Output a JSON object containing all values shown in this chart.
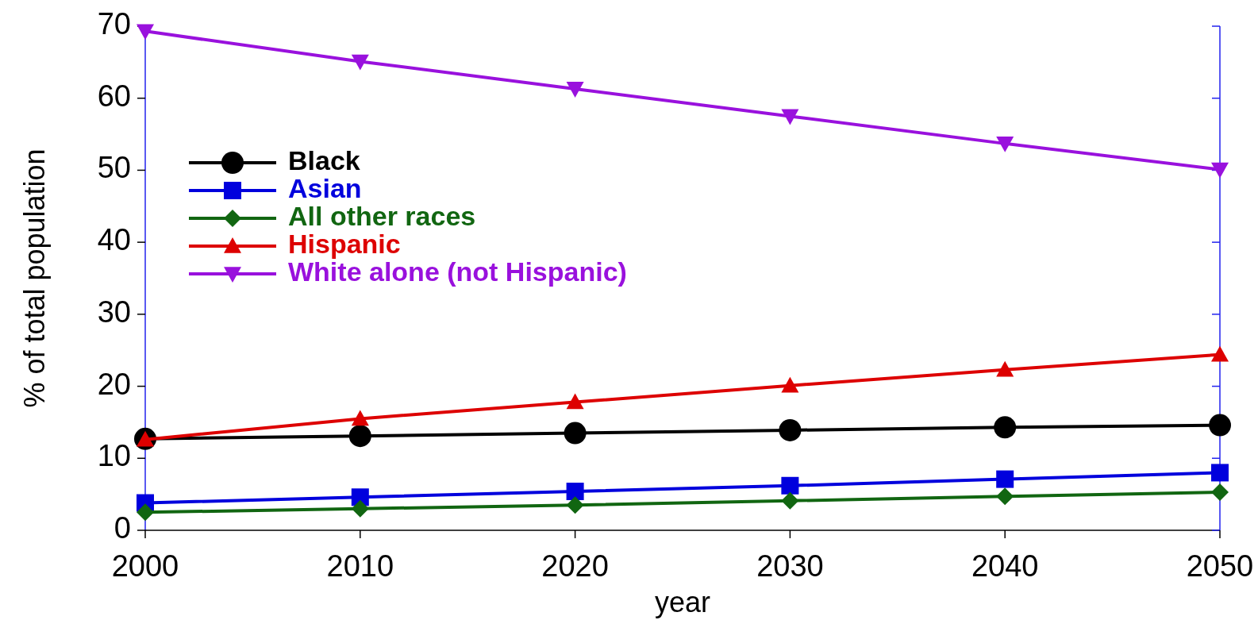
{
  "chart_data": {
    "type": "line",
    "xlabel": "year",
    "ylabel": "% of total population",
    "x": [
      2000,
      2010,
      2020,
      2030,
      2040,
      2050
    ],
    "xlim": [
      2000,
      2050
    ],
    "xticks": [
      2000,
      2010,
      2020,
      2030,
      2040,
      2050
    ],
    "ylim": [
      0,
      70
    ],
    "yticks": [
      0,
      10,
      20,
      30,
      40,
      50,
      60,
      70
    ],
    "grid": false,
    "legend": "top left",
    "line_style": "solid",
    "series": [
      {
        "name": "Black",
        "color": "#000000",
        "marker": "circle",
        "values": [
          12.7,
          13.1,
          13.5,
          13.9,
          14.3,
          14.6
        ]
      },
      {
        "name": "Asian",
        "color": "#0000dd",
        "marker": "square",
        "values": [
          3.8,
          4.6,
          5.4,
          6.2,
          7.1,
          8.0
        ]
      },
      {
        "name": "All other races",
        "color": "#116611",
        "marker": "diamond",
        "values": [
          2.5,
          3.0,
          3.5,
          4.1,
          4.7,
          5.3
        ]
      },
      {
        "name": "Hispanic",
        "color": "#dd0000",
        "marker": "triangle",
        "values": [
          12.6,
          15.5,
          17.8,
          20.1,
          22.3,
          24.4
        ]
      },
      {
        "name": "White alone (not Hispanic)",
        "color": "#9911dd",
        "marker": "triangle-down",
        "values": [
          69.3,
          65.1,
          61.3,
          57.5,
          53.7,
          50.1
        ]
      }
    ]
  }
}
